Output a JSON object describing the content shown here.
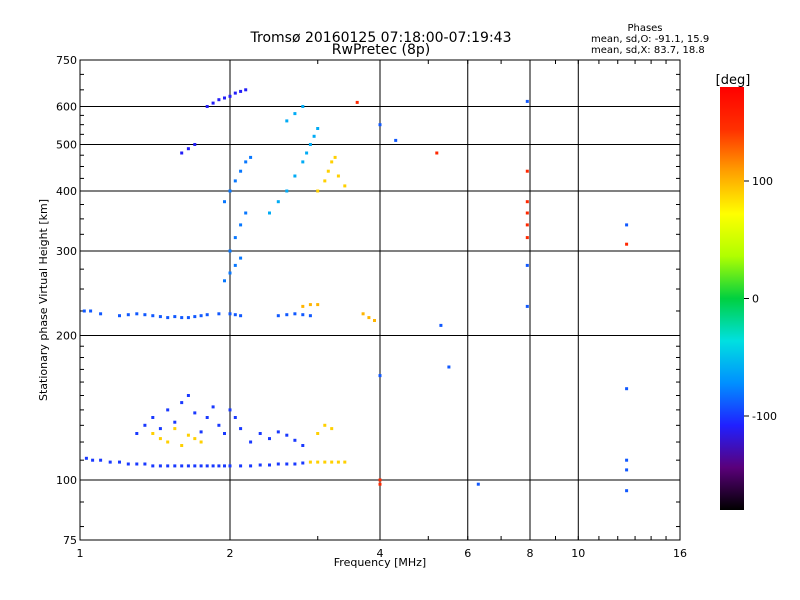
{
  "chart_data": {
    "type": "scatter",
    "title": "Tromsø 20160125 07:18:00-07:19:43",
    "subtitle": "RwPretec (8p)",
    "phases_header": "Phases",
    "phases_o": "mean, sd,O: -91.1, 15.9",
    "phases_x": "mean, sd,X: 83.7, 18.8",
    "xlabel": "Frequency [MHz]",
    "ylabel": "Stationary phase Virtual Height [km]",
    "x_scale": "log",
    "y_scale": "log",
    "xlim": [
      1,
      16
    ],
    "ylim": [
      75,
      750
    ],
    "grid": true,
    "xticks": [
      {
        "v": 1,
        "label": "1"
      },
      {
        "v": 2,
        "label": "2"
      },
      {
        "v": 4,
        "label": "4"
      },
      {
        "v": 6,
        "label": "6"
      },
      {
        "v": 8,
        "label": "8"
      },
      {
        "v": 10,
        "label": "10"
      },
      {
        "v": 16,
        "label": "16"
      }
    ],
    "yticks": [
      {
        "v": 75,
        "label": "75"
      },
      {
        "v": 100,
        "label": "100"
      },
      {
        "v": 200,
        "label": "200"
      },
      {
        "v": 300,
        "label": "300"
      },
      {
        "v": 400,
        "label": "400"
      },
      {
        "v": 500,
        "label": "500"
      },
      {
        "v": 600,
        "label": "600"
      },
      {
        "v": 750,
        "label": "750"
      }
    ],
    "colorbar": {
      "label": "[deg]",
      "range": [
        -180,
        180
      ],
      "ticks": [
        {
          "v": 100,
          "label": "100"
        },
        {
          "v": 0,
          "label": "0"
        },
        {
          "v": -100,
          "label": "-100"
        }
      ],
      "colors": [
        "#000000",
        "#5a007a",
        "#2020ff",
        "#0090ff",
        "#00e0e0",
        "#00d040",
        "#b0ff00",
        "#ffff00",
        "#ffa000",
        "#ff3000",
        "#ff0000"
      ]
    },
    "series": [
      {
        "kind": "O-trace F-layer (0.8-3.2 MHz)",
        "phase": -100,
        "points": [
          [
            1.03,
            111
          ],
          [
            1.06,
            110
          ],
          [
            1.1,
            110
          ],
          [
            1.15,
            109
          ],
          [
            1.2,
            109
          ],
          [
            1.25,
            108
          ],
          [
            1.3,
            108
          ],
          [
            1.35,
            108
          ],
          [
            1.4,
            107
          ],
          [
            1.45,
            107
          ],
          [
            1.5,
            107
          ],
          [
            1.55,
            107
          ],
          [
            1.6,
            107
          ],
          [
            1.65,
            107
          ],
          [
            1.7,
            107
          ],
          [
            1.75,
            107
          ],
          [
            1.8,
            107
          ],
          [
            1.85,
            107
          ],
          [
            1.9,
            107
          ],
          [
            1.95,
            107
          ],
          [
            2.0,
            107
          ],
          [
            2.1,
            107
          ],
          [
            2.2,
            107
          ],
          [
            2.3,
            107.5
          ],
          [
            2.4,
            107.5
          ],
          [
            2.5,
            108
          ],
          [
            2.6,
            108
          ],
          [
            2.7,
            108
          ],
          [
            2.8,
            108.5
          ]
        ]
      },
      {
        "kind": "trace near 3-3.4 MHz",
        "phase": 90,
        "points": [
          [
            2.9,
            109
          ],
          [
            3.0,
            109
          ],
          [
            3.1,
            109
          ],
          [
            3.2,
            109
          ],
          [
            3.3,
            109
          ],
          [
            3.4,
            109
          ]
        ]
      },
      {
        "kind": "E/F echoes near 220 km",
        "phase": -90,
        "points": [
          [
            1.02,
            225
          ],
          [
            1.05,
            225
          ],
          [
            1.1,
            222
          ],
          [
            1.2,
            220
          ],
          [
            1.25,
            221
          ],
          [
            1.3,
            222
          ],
          [
            1.35,
            221
          ],
          [
            1.4,
            220
          ],
          [
            1.45,
            219
          ],
          [
            1.5,
            218
          ],
          [
            1.55,
            219
          ],
          [
            1.6,
            218
          ],
          [
            1.65,
            218
          ],
          [
            1.7,
            219
          ],
          [
            1.75,
            220
          ],
          [
            1.8,
            221
          ],
          [
            1.9,
            222
          ],
          [
            2.0,
            222
          ],
          [
            2.05,
            221
          ],
          [
            2.1,
            220
          ],
          [
            2.5,
            220
          ],
          [
            2.6,
            221
          ],
          [
            2.7,
            222
          ],
          [
            2.8,
            221
          ],
          [
            2.9,
            220
          ]
        ]
      },
      {
        "kind": "echoes near 220 km (yellow)",
        "phase": 100,
        "points": [
          [
            3.7,
            222
          ],
          [
            3.8,
            218
          ],
          [
            3.9,
            215
          ],
          [
            2.8,
            230
          ],
          [
            2.9,
            232
          ],
          [
            3.0,
            232
          ]
        ]
      },
      {
        "kind": "F2 steep trace",
        "phase": -80,
        "points": [
          [
            1.95,
            260
          ],
          [
            2.0,
            270
          ],
          [
            2.05,
            280
          ],
          [
            2.1,
            290
          ],
          [
            2.0,
            300
          ],
          [
            2.05,
            320
          ],
          [
            2.1,
            340
          ],
          [
            2.15,
            360
          ],
          [
            1.95,
            380
          ],
          [
            2.0,
            400
          ],
          [
            2.05,
            420
          ],
          [
            2.1,
            440
          ],
          [
            2.15,
            460
          ],
          [
            2.2,
            470
          ]
        ]
      },
      {
        "kind": "F2 oblique trace",
        "phase": -60,
        "points": [
          [
            2.4,
            360
          ],
          [
            2.5,
            380
          ],
          [
            2.6,
            400
          ],
          [
            2.7,
            430
          ],
          [
            2.8,
            460
          ],
          [
            2.85,
            480
          ],
          [
            2.9,
            500
          ],
          [
            2.95,
            520
          ],
          [
            3.0,
            540
          ],
          [
            2.6,
            560
          ],
          [
            2.7,
            580
          ],
          [
            2.8,
            600
          ]
        ]
      },
      {
        "kind": "F2 yellow",
        "phase": 90,
        "points": [
          [
            3.0,
            400
          ],
          [
            3.1,
            420
          ],
          [
            3.15,
            440
          ],
          [
            3.2,
            460
          ],
          [
            3.25,
            470
          ],
          [
            3.3,
            430
          ],
          [
            3.4,
            410
          ]
        ]
      },
      {
        "kind": "high echoes",
        "phase": -110,
        "points": [
          [
            1.8,
            600
          ],
          [
            1.85,
            610
          ],
          [
            1.9,
            620
          ],
          [
            1.95,
            625
          ],
          [
            2.0,
            630
          ],
          [
            2.05,
            640
          ],
          [
            2.1,
            645
          ],
          [
            2.15,
            650
          ],
          [
            1.6,
            480
          ],
          [
            1.65,
            490
          ],
          [
            1.7,
            500
          ]
        ]
      },
      {
        "kind": "spread echoes 120-150 km",
        "phase": -100,
        "points": [
          [
            1.3,
            125
          ],
          [
            1.35,
            130
          ],
          [
            1.4,
            135
          ],
          [
            1.45,
            128
          ],
          [
            1.5,
            140
          ],
          [
            1.55,
            132
          ],
          [
            1.6,
            145
          ],
          [
            1.65,
            150
          ],
          [
            1.7,
            138
          ],
          [
            1.75,
            126
          ],
          [
            1.8,
            135
          ],
          [
            1.85,
            142
          ],
          [
            1.9,
            130
          ],
          [
            1.95,
            125
          ],
          [
            2.0,
            140
          ],
          [
            2.05,
            135
          ],
          [
            2.1,
            128
          ],
          [
            2.2,
            120
          ],
          [
            2.3,
            125
          ],
          [
            2.4,
            122
          ],
          [
            2.5,
            126
          ],
          [
            2.6,
            124
          ],
          [
            2.7,
            121
          ],
          [
            2.8,
            118
          ]
        ]
      },
      {
        "kind": "spread yellow",
        "phase": 90,
        "points": [
          [
            1.4,
            125
          ],
          [
            1.45,
            122
          ],
          [
            1.5,
            120
          ],
          [
            1.55,
            128
          ],
          [
            1.6,
            118
          ],
          [
            1.65,
            124
          ],
          [
            1.7,
            122
          ],
          [
            1.75,
            120
          ],
          [
            3.0,
            125
          ],
          [
            3.1,
            130
          ],
          [
            3.2,
            128
          ]
        ]
      },
      {
        "kind": "scattered",
        "phase": -90,
        "points": [
          [
            7.9,
            615
          ],
          [
            7.9,
            230
          ],
          [
            7.9,
            280
          ],
          [
            12.5,
            340
          ],
          [
            12.5,
            95
          ],
          [
            12.5,
            105
          ],
          [
            12.5,
            110
          ],
          [
            12.5,
            155
          ],
          [
            4.3,
            510
          ],
          [
            4.0,
            550
          ],
          [
            4.0,
            165
          ],
          [
            5.5,
            172
          ],
          [
            6.3,
            98
          ],
          [
            5.3,
            210
          ]
        ]
      },
      {
        "kind": "scattered warm",
        "phase": 150,
        "points": [
          [
            7.9,
            440
          ],
          [
            7.9,
            320
          ],
          [
            7.9,
            340
          ],
          [
            7.9,
            360
          ],
          [
            7.9,
            380
          ],
          [
            12.5,
            310
          ],
          [
            3.6,
            612
          ],
          [
            5.2,
            480
          ],
          [
            4.0,
            100
          ],
          [
            4.0,
            98
          ]
        ]
      }
    ]
  }
}
